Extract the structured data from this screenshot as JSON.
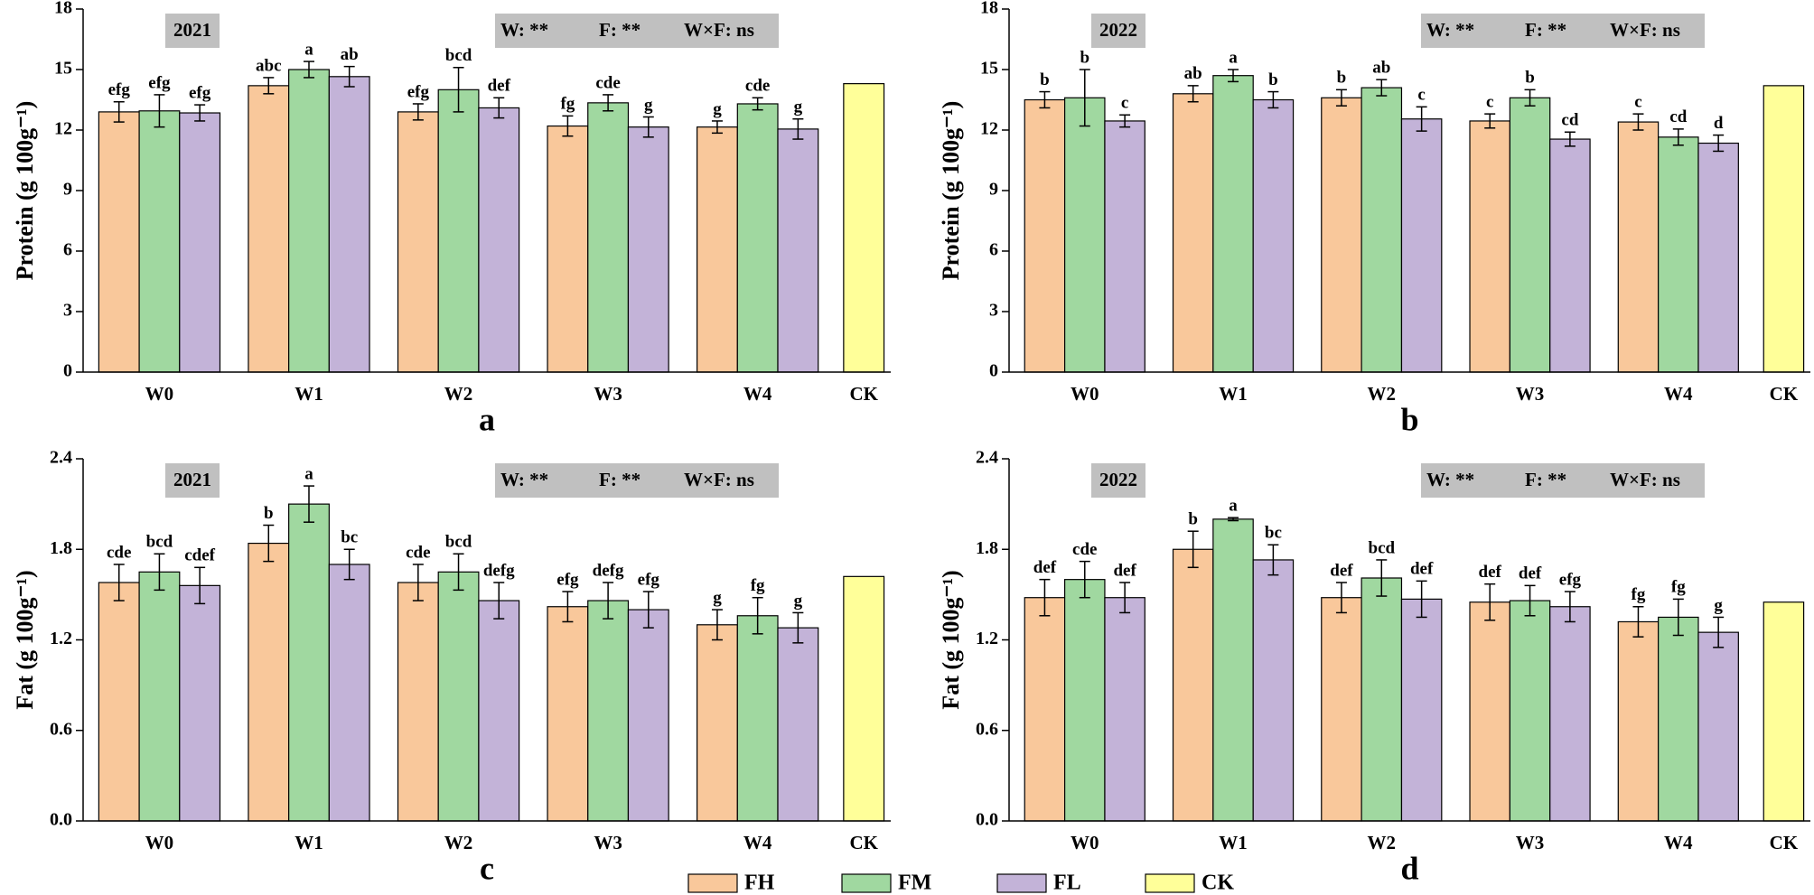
{
  "legend": [
    {
      "name": "FH",
      "color": "#f9c89b"
    },
    {
      "name": "FM",
      "color": "#a0d8a0"
    },
    {
      "name": "FL",
      "color": "#c3b3d8"
    },
    {
      "name": "CK",
      "color": "#ffff99"
    }
  ],
  "chart_data": [
    {
      "type": "bar",
      "panel_label": "a",
      "year_label": "2021",
      "stats": [
        "W: **",
        "F: **",
        "W×F: ns"
      ],
      "y_label": "Protein (g 100g⁻¹)",
      "categories": [
        "W0",
        "W1",
        "W2",
        "W3",
        "W4",
        "CK"
      ],
      "ylim": [
        0,
        18
      ],
      "yticks": [
        0,
        3,
        6,
        9,
        12,
        15,
        18
      ],
      "series": [
        {
          "values": [
            12.9,
            14.2,
            12.9,
            12.2,
            12.15,
            null
          ],
          "errors": [
            0.5,
            0.4,
            0.4,
            0.5,
            0.3,
            null
          ],
          "letters": [
            "efg",
            "abc",
            "efg",
            "fg",
            "g",
            null
          ]
        },
        {
          "values": [
            12.95,
            15.0,
            14.0,
            13.35,
            13.3,
            null
          ],
          "errors": [
            0.8,
            0.4,
            1.1,
            0.4,
            0.3,
            null
          ],
          "letters": [
            "efg",
            "a",
            "bcd",
            "cde",
            "cde",
            null
          ]
        },
        {
          "values": [
            12.85,
            14.65,
            13.1,
            12.15,
            12.05,
            null
          ],
          "errors": [
            0.4,
            0.5,
            0.5,
            0.5,
            0.5,
            null
          ],
          "letters": [
            "efg",
            "ab",
            "def",
            "g",
            "g",
            null
          ]
        },
        {
          "values": [
            null,
            null,
            null,
            null,
            null,
            14.3
          ]
        }
      ]
    },
    {
      "type": "bar",
      "panel_label": "b",
      "year_label": "2022",
      "stats": [
        "W: **",
        "F: **",
        "W×F: ns"
      ],
      "y_label": "Protein (g 100g⁻¹)",
      "categories": [
        "W0",
        "W1",
        "W2",
        "W3",
        "W4",
        "CK"
      ],
      "ylim": [
        0,
        18
      ],
      "yticks": [
        0,
        3,
        6,
        9,
        12,
        15,
        18
      ],
      "series": [
        {
          "values": [
            13.5,
            13.8,
            13.6,
            12.45,
            12.4,
            null
          ],
          "errors": [
            0.4,
            0.4,
            0.4,
            0.35,
            0.4,
            null
          ],
          "letters": [
            "b",
            "ab",
            "b",
            "c",
            "c",
            null
          ]
        },
        {
          "values": [
            13.6,
            14.7,
            14.1,
            13.6,
            11.65,
            null
          ],
          "errors": [
            1.4,
            0.3,
            0.4,
            0.4,
            0.4,
            null
          ],
          "letters": [
            "b",
            "a",
            "ab",
            "b",
            "cd",
            null
          ]
        },
        {
          "values": [
            12.45,
            13.5,
            12.55,
            11.55,
            11.35,
            null
          ],
          "errors": [
            0.3,
            0.4,
            0.6,
            0.35,
            0.4,
            null
          ],
          "letters": [
            "c",
            "b",
            "c",
            "cd",
            "d",
            null
          ]
        },
        {
          "values": [
            null,
            null,
            null,
            null,
            null,
            14.2
          ]
        }
      ]
    },
    {
      "type": "bar",
      "panel_label": "c",
      "year_label": "2021",
      "stats": [
        "W: **",
        "F: **",
        "W×F: ns"
      ],
      "y_label": "Fat (g 100g⁻¹)",
      "categories": [
        "W0",
        "W1",
        "W2",
        "W3",
        "W4",
        "CK"
      ],
      "ylim": [
        0,
        2.4
      ],
      "yticks": [
        {
          "value": 0,
          "label": "0.0"
        },
        0.6,
        1.2,
        1.8,
        2.4
      ],
      "series": [
        {
          "values": [
            1.58,
            1.84,
            1.58,
            1.42,
            1.3,
            null
          ],
          "errors": [
            0.12,
            0.12,
            0.12,
            0.1,
            0.1,
            null
          ],
          "letters": [
            "cde",
            "b",
            "cde",
            "efg",
            "g",
            null
          ]
        },
        {
          "values": [
            1.65,
            2.1,
            1.65,
            1.46,
            1.36,
            null
          ],
          "errors": [
            0.12,
            0.12,
            0.12,
            0.12,
            0.12,
            null
          ],
          "letters": [
            "bcd",
            "a",
            "bcd",
            "defg",
            "fg",
            null
          ]
        },
        {
          "values": [
            1.56,
            1.7,
            1.46,
            1.4,
            1.28,
            null
          ],
          "errors": [
            0.12,
            0.1,
            0.12,
            0.12,
            0.1,
            null
          ],
          "letters": [
            "cdef",
            "bc",
            "defg",
            "efg",
            "g",
            null
          ]
        },
        {
          "values": [
            null,
            null,
            null,
            null,
            null,
            1.62
          ]
        }
      ]
    },
    {
      "type": "bar",
      "panel_label": "d",
      "year_label": "2022",
      "stats": [
        "W: **",
        "F: **",
        "W×F: ns"
      ],
      "y_label": "Fat (g 100g⁻¹)",
      "categories": [
        "W0",
        "W1",
        "W2",
        "W3",
        "W4",
        "CK"
      ],
      "ylim": [
        0,
        2.4
      ],
      "yticks": [
        {
          "value": 0,
          "label": "0.0"
        },
        0.6,
        1.2,
        1.8,
        2.4
      ],
      "series": [
        {
          "values": [
            1.48,
            1.8,
            1.48,
            1.45,
            1.32,
            null
          ],
          "errors": [
            0.12,
            0.12,
            0.1,
            0.12,
            0.1,
            null
          ],
          "letters": [
            "def",
            "b",
            "def",
            "def",
            "fg",
            null
          ]
        },
        {
          "values": [
            1.6,
            2.0,
            1.61,
            1.46,
            1.35,
            null
          ],
          "errors": [
            0.12,
            0.01,
            0.12,
            0.1,
            0.12,
            null
          ],
          "letters": [
            "cde",
            "a",
            "bcd",
            "def",
            "fg",
            null
          ]
        },
        {
          "values": [
            1.48,
            1.73,
            1.47,
            1.42,
            1.25,
            null
          ],
          "errors": [
            0.1,
            0.1,
            0.12,
            0.1,
            0.1,
            null
          ],
          "letters": [
            "def",
            "bc",
            "def",
            "efg",
            "g",
            null
          ]
        },
        {
          "values": [
            null,
            null,
            null,
            null,
            null,
            1.45
          ]
        }
      ]
    }
  ]
}
